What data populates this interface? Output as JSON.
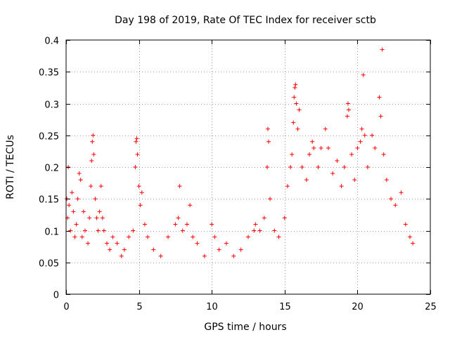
{
  "chart_data": {
    "type": "scatter",
    "title": "Day 198 of 2019, Rate Of TEC Index for receiver sctb",
    "xlabel": "GPS time / hours",
    "ylabel": "ROTI / TECUs",
    "xlim": [
      0,
      25
    ],
    "ylim": [
      0,
      0.4
    ],
    "xticks": [
      0,
      5,
      10,
      15,
      20,
      25
    ],
    "yticks": [
      0,
      0.05,
      0.1,
      0.15,
      0.2,
      0.25,
      0.3,
      0.35,
      0.4
    ],
    "xtick_labels": [
      "0",
      "5",
      "10",
      "15",
      "20",
      "25"
    ],
    "ytick_labels": [
      "0",
      "0.05",
      "0.1",
      "0.15",
      "0.2",
      "0.25",
      "0.3",
      "0.35",
      "0.4"
    ],
    "grid": true,
    "marker": "plus",
    "color": "#ff0000",
    "series": [
      {
        "name": "ROTI",
        "points": [
          [
            0.05,
            0.15
          ],
          [
            0.1,
            0.12
          ],
          [
            0.15,
            0.2
          ],
          [
            0.2,
            0.14
          ],
          [
            0.3,
            0.1
          ],
          [
            0.4,
            0.16
          ],
          [
            0.5,
            0.13
          ],
          [
            0.6,
            0.09
          ],
          [
            0.7,
            0.11
          ],
          [
            0.8,
            0.15
          ],
          [
            0.9,
            0.19
          ],
          [
            1.0,
            0.18
          ],
          [
            1.1,
            0.09
          ],
          [
            1.2,
            0.13
          ],
          [
            1.3,
            0.1
          ],
          [
            1.5,
            0.08
          ],
          [
            1.6,
            0.12
          ],
          [
            1.7,
            0.17
          ],
          [
            1.75,
            0.21
          ],
          [
            1.8,
            0.24
          ],
          [
            1.85,
            0.25
          ],
          [
            1.9,
            0.22
          ],
          [
            2.0,
            0.15
          ],
          [
            2.1,
            0.12
          ],
          [
            2.2,
            0.1
          ],
          [
            2.3,
            0.13
          ],
          [
            2.4,
            0.17
          ],
          [
            2.5,
            0.12
          ],
          [
            2.6,
            0.1
          ],
          [
            2.8,
            0.08
          ],
          [
            3.0,
            0.07
          ],
          [
            3.2,
            0.09
          ],
          [
            3.5,
            0.08
          ],
          [
            3.8,
            0.06
          ],
          [
            4.0,
            0.07
          ],
          [
            4.3,
            0.09
          ],
          [
            4.6,
            0.1
          ],
          [
            4.75,
            0.2
          ],
          [
            4.8,
            0.24
          ],
          [
            4.85,
            0.245
          ],
          [
            4.9,
            0.22
          ],
          [
            5.0,
            0.17
          ],
          [
            5.1,
            0.14
          ],
          [
            5.2,
            0.16
          ],
          [
            5.4,
            0.11
          ],
          [
            5.6,
            0.09
          ],
          [
            6.0,
            0.07
          ],
          [
            6.5,
            0.06
          ],
          [
            7.0,
            0.09
          ],
          [
            7.5,
            0.11
          ],
          [
            7.7,
            0.12
          ],
          [
            7.8,
            0.17
          ],
          [
            8.0,
            0.1
          ],
          [
            8.3,
            0.11
          ],
          [
            8.5,
            0.14
          ],
          [
            8.7,
            0.09
          ],
          [
            9.0,
            0.08
          ],
          [
            9.5,
            0.06
          ],
          [
            10.0,
            0.11
          ],
          [
            10.2,
            0.09
          ],
          [
            10.5,
            0.07
          ],
          [
            11.0,
            0.08
          ],
          [
            11.5,
            0.06
          ],
          [
            12.0,
            0.07
          ],
          [
            12.5,
            0.09
          ],
          [
            12.9,
            0.1
          ],
          [
            13.0,
            0.11
          ],
          [
            13.3,
            0.1
          ],
          [
            13.6,
            0.12
          ],
          [
            13.8,
            0.2
          ],
          [
            13.85,
            0.26
          ],
          [
            13.9,
            0.24
          ],
          [
            14.0,
            0.15
          ],
          [
            14.3,
            0.1
          ],
          [
            14.6,
            0.09
          ],
          [
            15.0,
            0.12
          ],
          [
            15.2,
            0.17
          ],
          [
            15.4,
            0.2
          ],
          [
            15.5,
            0.22
          ],
          [
            15.6,
            0.27
          ],
          [
            15.65,
            0.31
          ],
          [
            15.7,
            0.325
          ],
          [
            15.75,
            0.33
          ],
          [
            15.8,
            0.3
          ],
          [
            15.9,
            0.26
          ],
          [
            16.0,
            0.29
          ],
          [
            16.2,
            0.2
          ],
          [
            16.5,
            0.18
          ],
          [
            16.7,
            0.22
          ],
          [
            16.9,
            0.24
          ],
          [
            17.0,
            0.23
          ],
          [
            17.3,
            0.2
          ],
          [
            17.5,
            0.23
          ],
          [
            17.8,
            0.26
          ],
          [
            18.0,
            0.23
          ],
          [
            18.3,
            0.19
          ],
          [
            18.6,
            0.21
          ],
          [
            18.9,
            0.17
          ],
          [
            19.1,
            0.2
          ],
          [
            19.3,
            0.28
          ],
          [
            19.35,
            0.3
          ],
          [
            19.4,
            0.29
          ],
          [
            19.6,
            0.22
          ],
          [
            19.8,
            0.18
          ],
          [
            20.0,
            0.23
          ],
          [
            20.2,
            0.24
          ],
          [
            20.3,
            0.26
          ],
          [
            20.4,
            0.345
          ],
          [
            20.5,
            0.25
          ],
          [
            20.7,
            0.2
          ],
          [
            21.0,
            0.25
          ],
          [
            21.2,
            0.23
          ],
          [
            21.5,
            0.31
          ],
          [
            21.6,
            0.28
          ],
          [
            21.7,
            0.385
          ],
          [
            21.8,
            0.22
          ],
          [
            22.0,
            0.18
          ],
          [
            22.3,
            0.15
          ],
          [
            22.6,
            0.14
          ],
          [
            23.0,
            0.16
          ],
          [
            23.3,
            0.11
          ],
          [
            23.6,
            0.09
          ],
          [
            23.8,
            0.08
          ]
        ]
      }
    ]
  }
}
